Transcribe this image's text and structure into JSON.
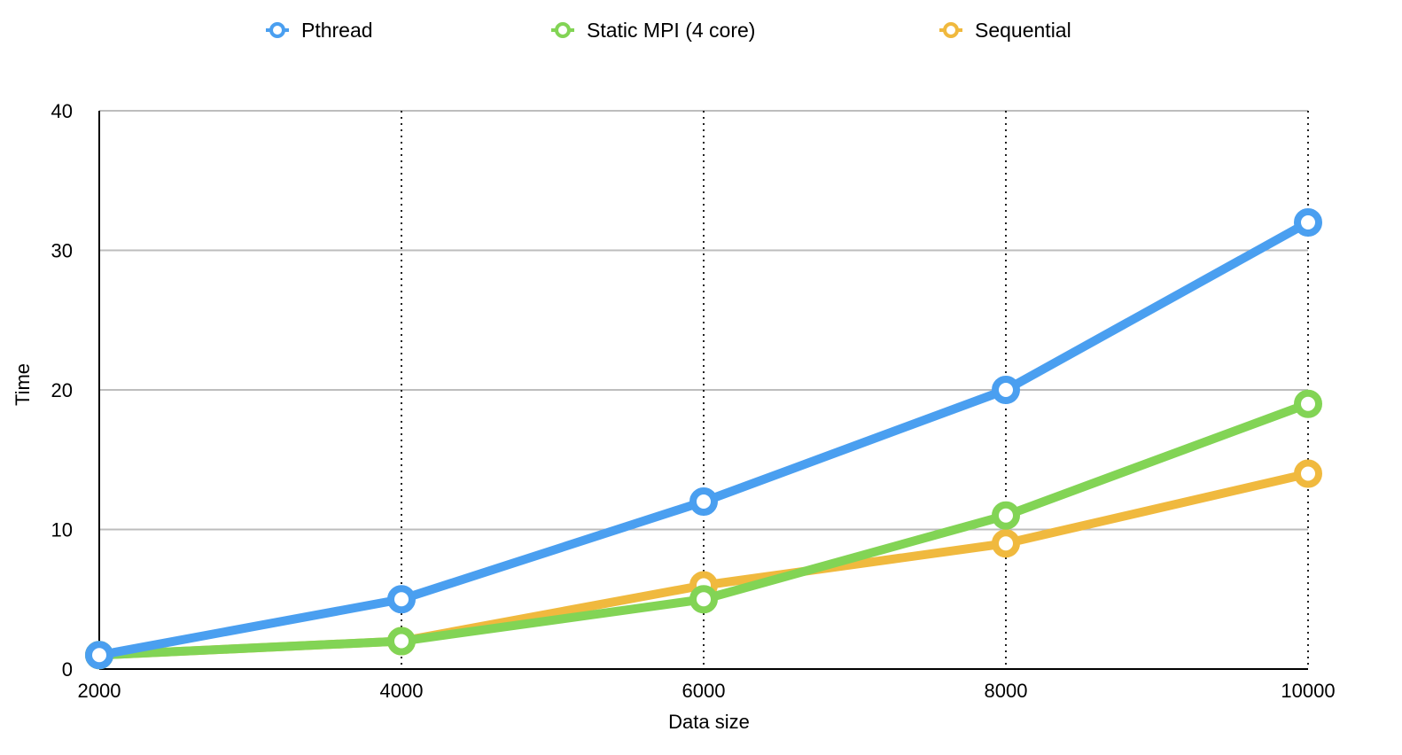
{
  "chart_data": {
    "type": "line",
    "title": "",
    "xlabel": "Data size",
    "ylabel": "Time",
    "x": [
      2000,
      4000,
      6000,
      8000,
      10000
    ],
    "xlim": [
      2000,
      10000
    ],
    "ylim": [
      0,
      40
    ],
    "x_ticks": [
      "2000",
      "4000",
      "6000",
      "8000",
      "10000"
    ],
    "y_ticks": [
      "0",
      "10",
      "20",
      "30",
      "40"
    ],
    "y_tick_values": [
      0,
      10,
      20,
      30,
      40
    ],
    "grid": {
      "horizontal": "solid",
      "vertical": "dotted"
    },
    "legend_position": "top",
    "series": [
      {
        "name": "Pthread",
        "color": "#4a9ff0",
        "values": [
          1,
          5,
          12,
          20,
          32
        ]
      },
      {
        "name": "Static MPI (4 core)",
        "color": "#82d455",
        "values": [
          1,
          2,
          5,
          11,
          19
        ]
      },
      {
        "name": "Sequential",
        "color": "#f0b93e",
        "values": [
          1,
          2,
          6,
          9,
          14
        ]
      }
    ],
    "draw_order": [
      2,
      1,
      0
    ]
  }
}
